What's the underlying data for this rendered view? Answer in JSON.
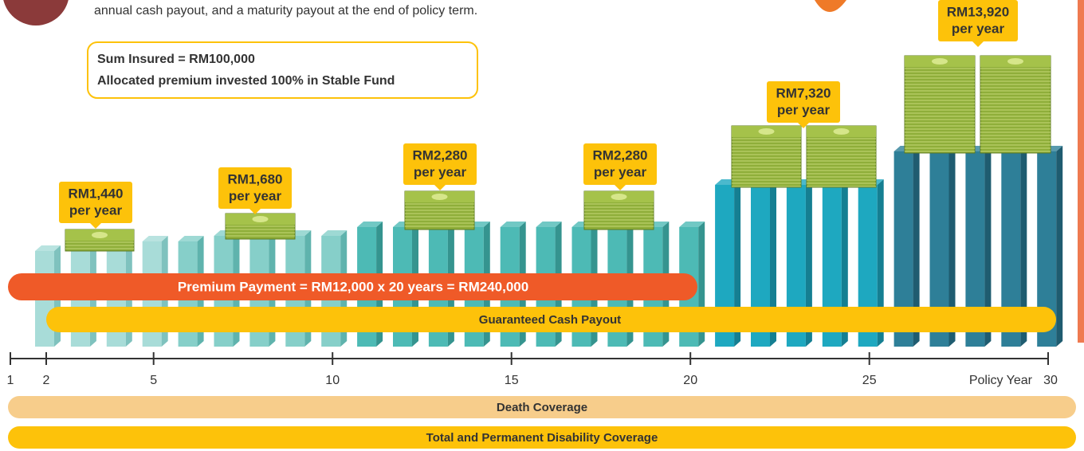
{
  "intro_text": "annual cash payout, and a maturity payout at the end of policy term.",
  "info_box": {
    "lines": [
      "Sum Insured = RM100,000",
      "Allocated premium invested 100% in Stable Fund"
    ]
  },
  "payouts": [
    {
      "amount": "RM1,440",
      "period": "per year"
    },
    {
      "amount": "RM1,680",
      "period": "per year"
    },
    {
      "amount": "RM2,280",
      "period": "per year"
    },
    {
      "amount": "RM2,280",
      "period": "per year"
    },
    {
      "amount": "RM7,320",
      "period": "per year"
    },
    {
      "amount": "RM13,920",
      "period": "per year"
    }
  ],
  "bars": {
    "premium_payment": "Premium Payment = RM12,000 x 20 years = RM240,000",
    "guaranteed_cash_payout": "Guaranteed Cash Payout"
  },
  "axis": {
    "ticks": [
      "1",
      "2",
      "5",
      "10",
      "15",
      "20",
      "25"
    ],
    "label": "Policy Year",
    "end_tick": "30"
  },
  "coverage": {
    "death": "Death Coverage",
    "tpd": "Total and Permanent Disability Coverage"
  }
}
